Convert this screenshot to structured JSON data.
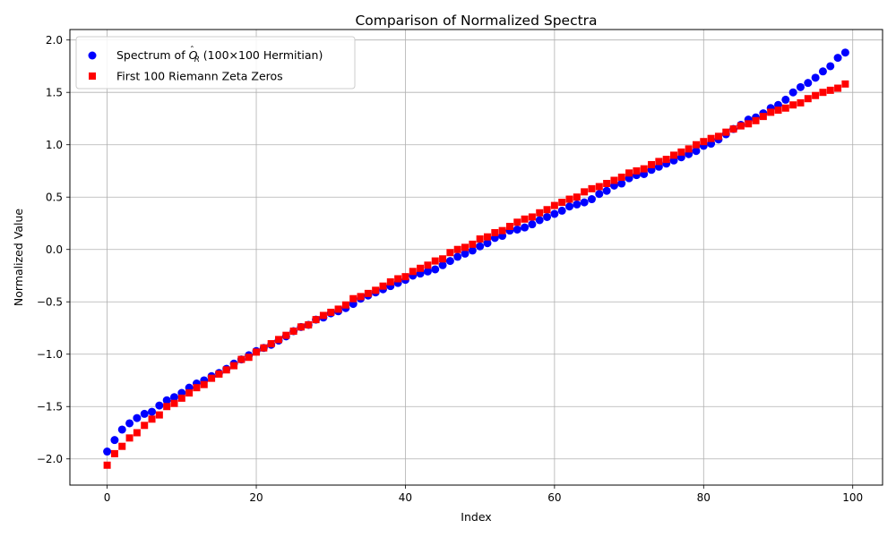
{
  "chart_data": {
    "type": "scatter",
    "title": "Comparison of Normalized Spectra",
    "xlabel": "Index",
    "ylabel": "Normalized Value",
    "xlim": [
      -5,
      104
    ],
    "ylim": [
      -2.25,
      2.1
    ],
    "xticks": [
      0,
      20,
      40,
      60,
      80,
      100
    ],
    "yticks": [
      -2.0,
      -1.5,
      -1.0,
      -0.5,
      0.0,
      0.5,
      1.0,
      1.5,
      2.0
    ],
    "xtick_labels": [
      "0",
      "20",
      "40",
      "60",
      "80",
      "100"
    ],
    "ytick_labels": [
      "−2.0",
      "−1.5",
      "−1.0",
      "−0.5",
      "0.0",
      "0.5",
      "1.0",
      "1.5",
      "2.0"
    ],
    "grid": true,
    "legend_position": "upper-left",
    "series": [
      {
        "name": "Spectrum of Ô_R (100×100 Hermitian)",
        "legend_prefix": "Spectrum of ",
        "legend_symbol_base": "O",
        "legend_symbol_hat": "ˆ",
        "legend_symbol_sub": "R",
        "legend_suffix": " (100×100 Hermitian)",
        "marker": "circle",
        "color": "#0000ff",
        "x_start": 0,
        "values": [
          -1.93,
          -1.82,
          -1.72,
          -1.66,
          -1.61,
          -1.57,
          -1.55,
          -1.49,
          -1.44,
          -1.41,
          -1.37,
          -1.32,
          -1.28,
          -1.25,
          -1.21,
          -1.18,
          -1.14,
          -1.09,
          -1.05,
          -1.01,
          -0.97,
          -0.94,
          -0.91,
          -0.87,
          -0.83,
          -0.78,
          -0.74,
          -0.72,
          -0.67,
          -0.65,
          -0.61,
          -0.59,
          -0.56,
          -0.52,
          -0.47,
          -0.44,
          -0.41,
          -0.38,
          -0.35,
          -0.32,
          -0.29,
          -0.25,
          -0.23,
          -0.21,
          -0.19,
          -0.15,
          -0.11,
          -0.07,
          -0.04,
          -0.01,
          0.03,
          0.06,
          0.11,
          0.13,
          0.18,
          0.19,
          0.21,
          0.24,
          0.28,
          0.31,
          0.34,
          0.37,
          0.41,
          0.43,
          0.45,
          0.48,
          0.53,
          0.56,
          0.61,
          0.63,
          0.68,
          0.71,
          0.72,
          0.76,
          0.79,
          0.82,
          0.85,
          0.88,
          0.91,
          0.94,
          0.99,
          1.01,
          1.05,
          1.1,
          1.15,
          1.19,
          1.24,
          1.26,
          1.3,
          1.35,
          1.38,
          1.43,
          1.5,
          1.55,
          1.59,
          1.64,
          1.7,
          1.75,
          1.83,
          1.88
        ]
      },
      {
        "name": "First 100 Riemann Zeta Zeros",
        "marker": "square",
        "color": "#ff0000",
        "x_start": 0,
        "values": [
          -2.06,
          -1.95,
          -1.88,
          -1.8,
          -1.75,
          -1.68,
          -1.62,
          -1.58,
          -1.5,
          -1.47,
          -1.42,
          -1.37,
          -1.32,
          -1.29,
          -1.23,
          -1.19,
          -1.15,
          -1.11,
          -1.05,
          -1.03,
          -0.98,
          -0.94,
          -0.9,
          -0.86,
          -0.82,
          -0.78,
          -0.74,
          -0.72,
          -0.67,
          -0.63,
          -0.6,
          -0.57,
          -0.53,
          -0.47,
          -0.45,
          -0.42,
          -0.39,
          -0.35,
          -0.31,
          -0.28,
          -0.26,
          -0.21,
          -0.18,
          -0.15,
          -0.11,
          -0.09,
          -0.03,
          0.0,
          0.02,
          0.05,
          0.1,
          0.12,
          0.16,
          0.18,
          0.22,
          0.26,
          0.29,
          0.31,
          0.35,
          0.38,
          0.42,
          0.45,
          0.48,
          0.5,
          0.55,
          0.58,
          0.6,
          0.63,
          0.66,
          0.69,
          0.73,
          0.75,
          0.77,
          0.81,
          0.84,
          0.86,
          0.9,
          0.93,
          0.96,
          1.0,
          1.03,
          1.06,
          1.08,
          1.12,
          1.15,
          1.18,
          1.2,
          1.23,
          1.27,
          1.31,
          1.33,
          1.35,
          1.38,
          1.4,
          1.44,
          1.47,
          1.5,
          1.52,
          1.54,
          1.58
        ]
      }
    ]
  }
}
